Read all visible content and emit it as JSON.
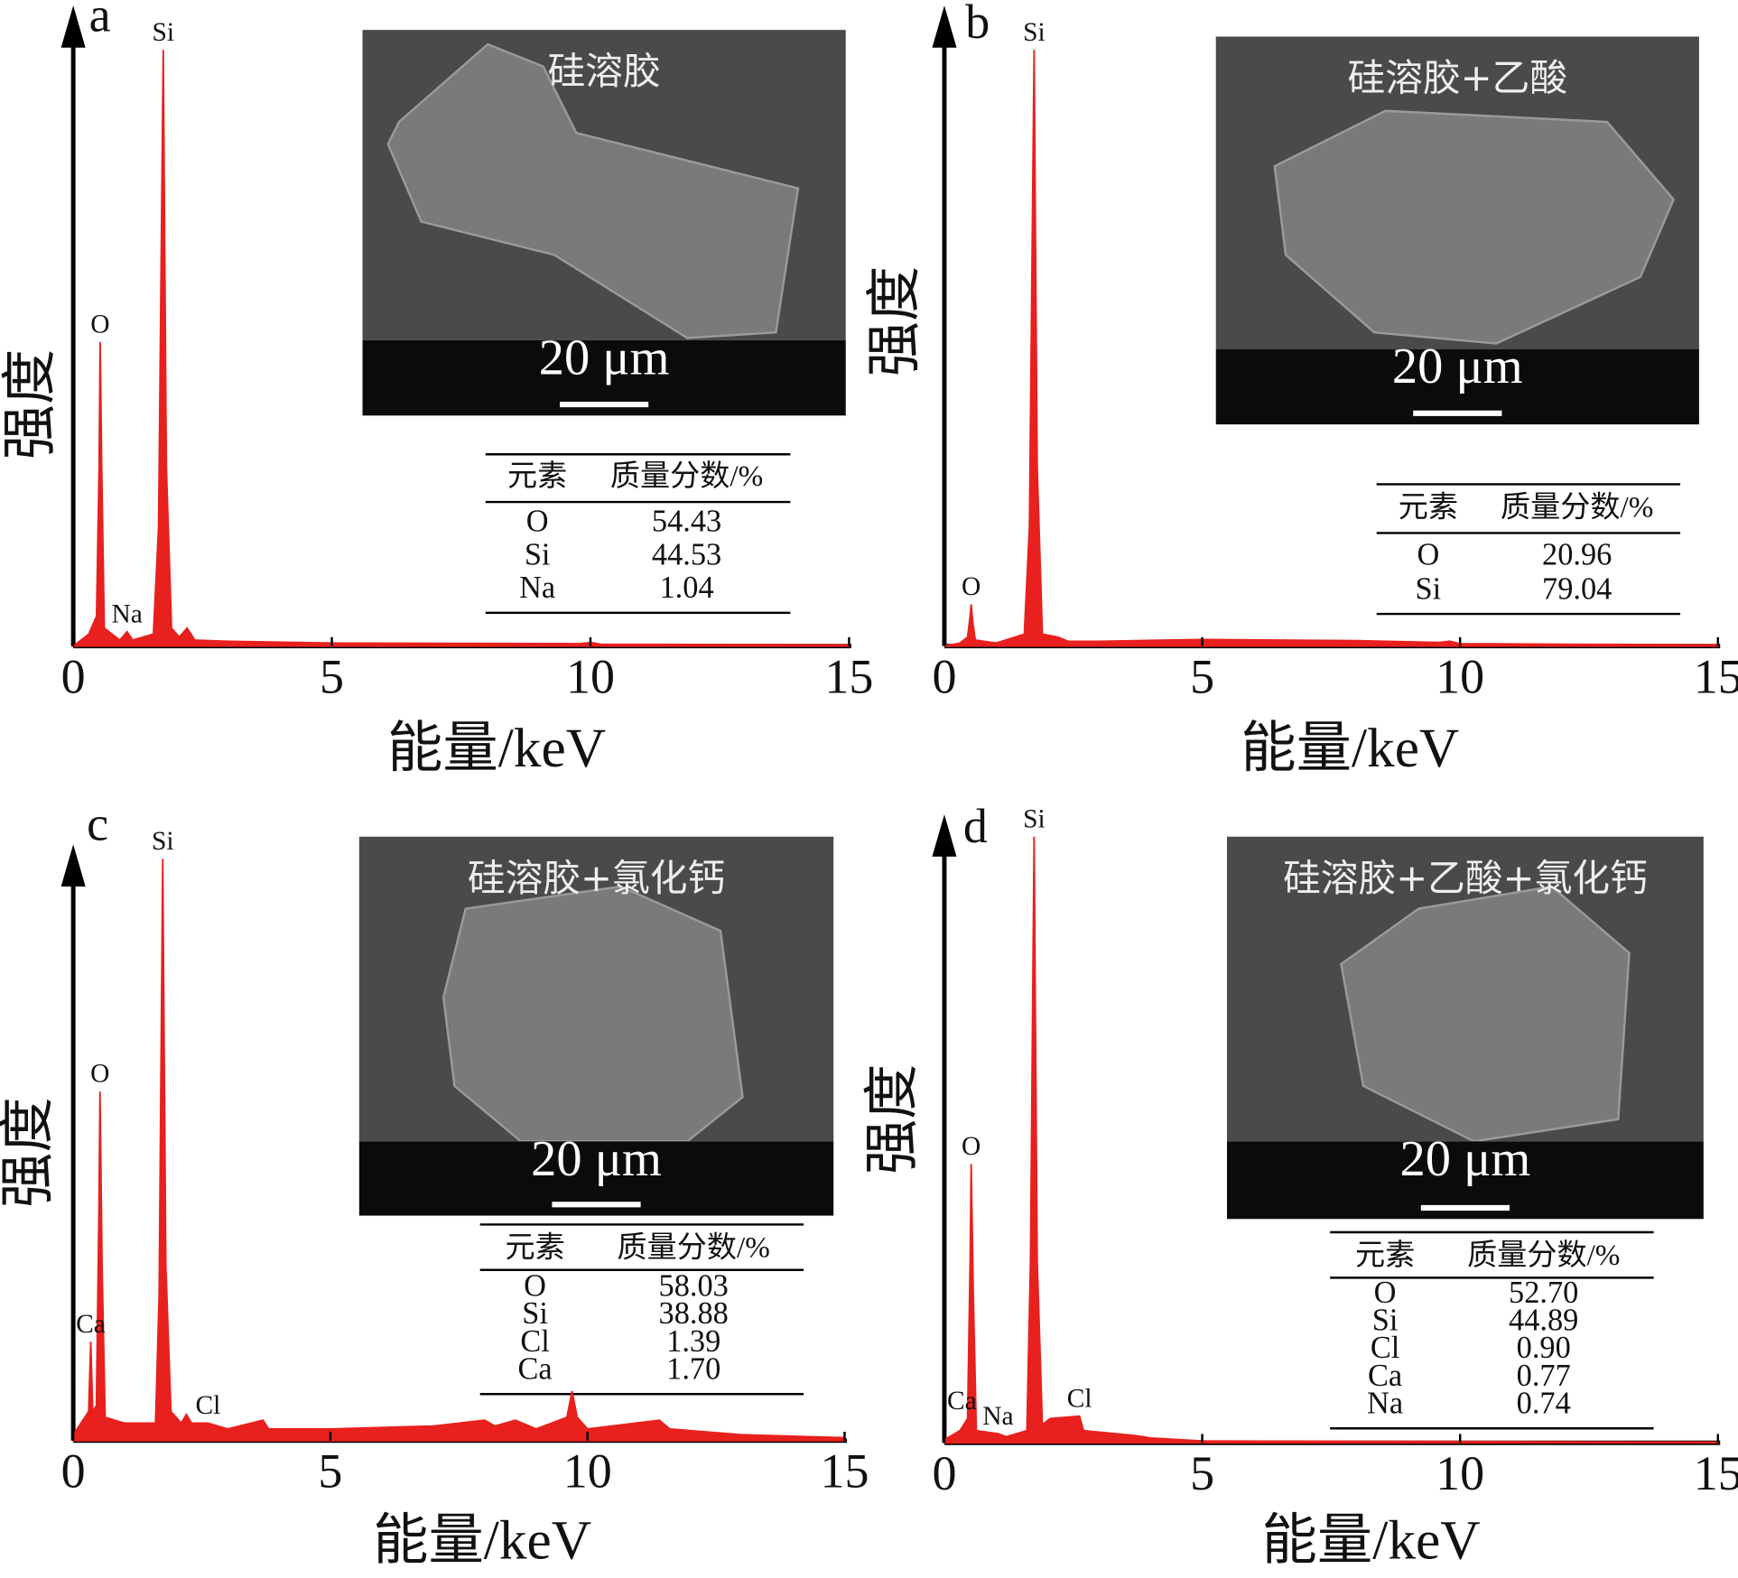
{
  "chart_data": [
    {
      "type": "line",
      "panel_label": "a",
      "ylabel": "强度",
      "xlabel": "能量/keV",
      "xlim": [
        0,
        15
      ],
      "xticks": [
        0,
        5,
        10,
        15
      ],
      "ylim": [
        0,
        100
      ],
      "color": "#e8201e",
      "x": [
        0,
        0.15,
        0.3,
        0.45,
        0.5,
        0.52,
        0.55,
        0.6,
        0.9,
        1.04,
        1.15,
        1.55,
        1.65,
        1.74,
        1.8,
        1.9,
        2.05,
        2.2,
        2.35,
        3,
        5,
        9.8,
        10,
        10.2,
        15
      ],
      "values": [
        0,
        1,
        2,
        5,
        30,
        51,
        30,
        3,
        1,
        2.4,
        1,
        2,
        20,
        100,
        30,
        3,
        1.5,
        3,
        1,
        0.8,
        0.5,
        0.4,
        0.6,
        0.3,
        0.2
      ],
      "peaks": [
        {
          "text": "O",
          "x": 0.52
        },
        {
          "text": "Si",
          "x": 1.74
        },
        {
          "text": "Na",
          "x": 1.04
        }
      ],
      "inset_caption": "硅溶胶",
      "scale_bar_label": "20 μm",
      "table": {
        "header": [
          "元素",
          "质量分数/%"
        ],
        "rows": [
          [
            "O",
            "54.43"
          ],
          [
            "Si",
            "44.53"
          ],
          [
            "Na",
            "1.04"
          ]
        ]
      }
    },
    {
      "type": "line",
      "panel_label": "b",
      "ylabel": "强度",
      "xlabel": "能量/keV",
      "xlim": [
        0,
        15
      ],
      "xticks": [
        0,
        5,
        10,
        15
      ],
      "ylim": [
        0,
        100
      ],
      "color": "#e8201e",
      "x": [
        0,
        0.3,
        0.45,
        0.5,
        0.52,
        0.55,
        0.6,
        1.0,
        1.55,
        1.65,
        1.74,
        1.8,
        1.9,
        2.2,
        2.4,
        3,
        5,
        8,
        9.6,
        9.8,
        10,
        12,
        15
      ],
      "values": [
        0,
        0.5,
        1.5,
        5,
        7,
        4,
        1,
        0.5,
        2,
        20,
        100,
        30,
        2,
        1.5,
        0.8,
        0.8,
        1.1,
        0.9,
        0.6,
        0.8,
        0.4,
        0.3,
        0.2
      ],
      "peaks": [
        {
          "text": "O",
          "x": 0.52
        },
        {
          "text": "Si",
          "x": 1.74
        }
      ],
      "inset_caption": "硅溶胶+乙酸",
      "scale_bar_label": "20 μm",
      "table": {
        "header": [
          "元素",
          "质量分数/%"
        ],
        "rows": [
          [
            "O",
            "20.96"
          ],
          [
            "Si",
            "79.04"
          ]
        ]
      }
    },
    {
      "type": "line",
      "panel_label": "c",
      "ylabel": "强度",
      "xlabel": "能量/keV",
      "xlim": [
        0,
        15
      ],
      "xticks": [
        0,
        5,
        10,
        15
      ],
      "ylim": [
        0,
        100
      ],
      "color": "#e8201e",
      "x": [
        0,
        0.3,
        0.34,
        0.38,
        0.45,
        0.5,
        0.52,
        0.56,
        0.62,
        1.0,
        1.6,
        1.67,
        1.74,
        1.8,
        1.9,
        2.1,
        2.2,
        2.3,
        2.62,
        3,
        3.69,
        3.8,
        5,
        7,
        8,
        8.2,
        8.6,
        9,
        9.6,
        9.7,
        9.8,
        10,
        11.4,
        11.6,
        13,
        15
      ],
      "values": [
        1,
        5,
        17,
        5,
        6,
        40,
        60,
        30,
        4,
        3,
        3,
        25,
        100,
        30,
        5,
        3,
        4.5,
        3,
        3,
        2,
        3.5,
        2,
        2,
        2.5,
        3.5,
        2.5,
        3.5,
        2,
        4,
        8.5,
        4,
        2,
        3.5,
        2,
        1,
        0.5
      ],
      "peaks": [
        {
          "text": "O",
          "x": 0.52
        },
        {
          "text": "Si",
          "x": 1.74
        },
        {
          "text": "Ca",
          "x": 0.34
        },
        {
          "text": "Cl",
          "x": 2.62
        }
      ],
      "inset_caption": "硅溶胶+氯化钙",
      "scale_bar_label": "20 μm",
      "table": {
        "header": [
          "元素",
          "质量分数/%"
        ],
        "rows": [
          [
            "O",
            "58.03"
          ],
          [
            "Si",
            "38.88"
          ],
          [
            "Cl",
            "1.39"
          ],
          [
            "Ca",
            "1.70"
          ]
        ]
      }
    },
    {
      "type": "line",
      "panel_label": "d",
      "ylabel": "强度",
      "xlabel": "能量/keV",
      "xlim": [
        0,
        15
      ],
      "xticks": [
        0,
        5,
        10,
        15
      ],
      "ylim": [
        0,
        100
      ],
      "color": "#e8201e",
      "x": [
        0,
        0.3,
        0.34,
        0.45,
        0.5,
        0.52,
        0.56,
        0.62,
        1.04,
        1.2,
        1.6,
        1.67,
        1.74,
        1.8,
        1.9,
        2.05,
        2.62,
        2.7,
        3.69,
        4,
        5,
        15
      ],
      "values": [
        0.5,
        2,
        2.5,
        4,
        30,
        46,
        25,
        2,
        1.5,
        1,
        2,
        30,
        100,
        30,
        3,
        4,
        4.4,
        2,
        1.2,
        0.8,
        0.3,
        0.1
      ],
      "peaks": [
        {
          "text": "O",
          "x": 0.52
        },
        {
          "text": "Si",
          "x": 1.74
        },
        {
          "text": "Ca",
          "x": 0.34
        },
        {
          "text": "Na",
          "x": 1.04
        },
        {
          "text": "Cl",
          "x": 2.62
        }
      ],
      "inset_caption": "硅溶胶+乙酸+氯化钙",
      "scale_bar_label": "20 μm",
      "table": {
        "header": [
          "元素",
          "质量分数/%"
        ],
        "rows": [
          [
            "O",
            "52.70"
          ],
          [
            "Si",
            "44.89"
          ],
          [
            "Cl",
            "0.90"
          ],
          [
            "Ca",
            "0.77"
          ],
          [
            "Na",
            "0.74"
          ]
        ]
      }
    }
  ]
}
